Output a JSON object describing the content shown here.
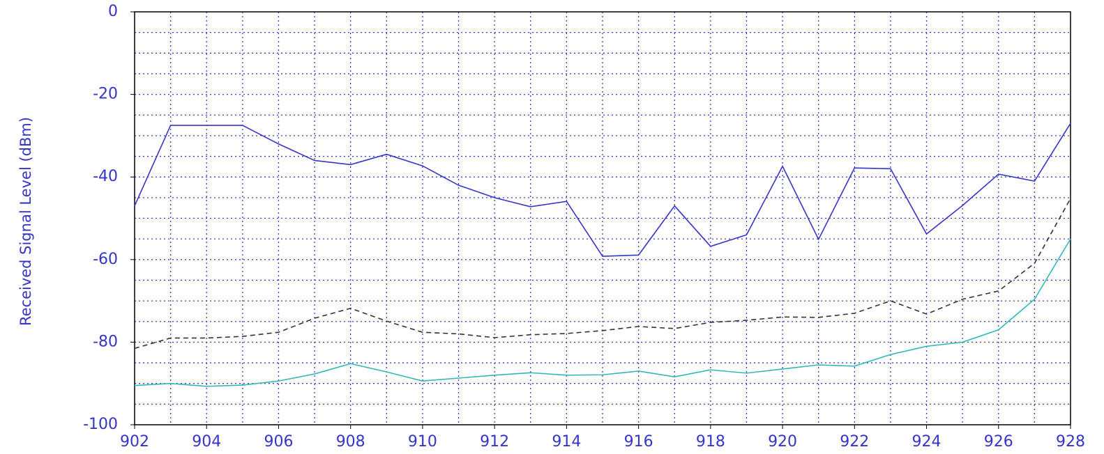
{
  "chart_data": {
    "type": "line",
    "ylabel": "Received Signal Level (dBm)",
    "x": [
      902,
      903,
      904,
      905,
      906,
      907,
      908,
      909,
      910,
      911,
      912,
      913,
      914,
      915,
      916,
      917,
      918,
      919,
      920,
      921,
      922,
      923,
      924,
      925,
      926,
      927,
      928
    ],
    "series": [
      {
        "color": "#3535c8",
        "dash": false,
        "values": [
          -47,
          -27.5,
          -27.5,
          -27.5,
          -32,
          -36,
          -37,
          -34.5,
          -37.3,
          -42,
          -45,
          -47.2,
          -45.9,
          -59.2,
          -58.9,
          -47,
          -56.8,
          -54,
          -37.4,
          -55.1,
          -37.8,
          -38,
          -53.8,
          -46.9,
          -39.3,
          -41,
          -27
        ]
      },
      {
        "color": "#333333",
        "dash": true,
        "values": [
          -81.5,
          -79,
          -79,
          -78.6,
          -77.6,
          -74.2,
          -71.8,
          -74.9,
          -77.6,
          -78,
          -78.9,
          -78.2,
          -77.9,
          -77.2,
          -76.2,
          -76.7,
          -75.2,
          -74.7,
          -73.9,
          -74,
          -73,
          -70,
          -73.2,
          -69.6,
          -67.6,
          -60.9,
          -45.2
        ]
      },
      {
        "color": "#33b8b8",
        "dash": false,
        "values": [
          -90.5,
          -90,
          -90.7,
          -90.4,
          -89.4,
          -87.7,
          -85.2,
          -87.2,
          -89.4,
          -88.7,
          -88,
          -87.4,
          -88,
          -87.9,
          -87,
          -88.4,
          -86.7,
          -87.5,
          -86.5,
          -85.5,
          -85.8,
          -83,
          -81,
          -80,
          -77,
          -69.6,
          -55
        ]
      }
    ],
    "xlim": [
      902,
      928
    ],
    "ylim": [
      -100,
      0
    ],
    "xticks": [
      902,
      904,
      906,
      908,
      910,
      912,
      914,
      916,
      918,
      920,
      922,
      924,
      926,
      928
    ],
    "yticks": [
      -100,
      -80,
      -60,
      -40,
      -20,
      0
    ],
    "xgrid": [
      903,
      904,
      905,
      906,
      907,
      908,
      909,
      910,
      911,
      912,
      913,
      914,
      915,
      916,
      917,
      918,
      919,
      920,
      921,
      922,
      923,
      924,
      925,
      926,
      927
    ],
    "ygrid": [
      -95,
      -90,
      -85,
      -80,
      -75,
      -70,
      -65,
      -60,
      -55,
      -50,
      -45,
      -40,
      -35,
      -30,
      -25,
      -20,
      -15,
      -10,
      -5
    ],
    "grid": true,
    "grid_color": "#3a3ad0",
    "label_color": "#3535c8"
  }
}
